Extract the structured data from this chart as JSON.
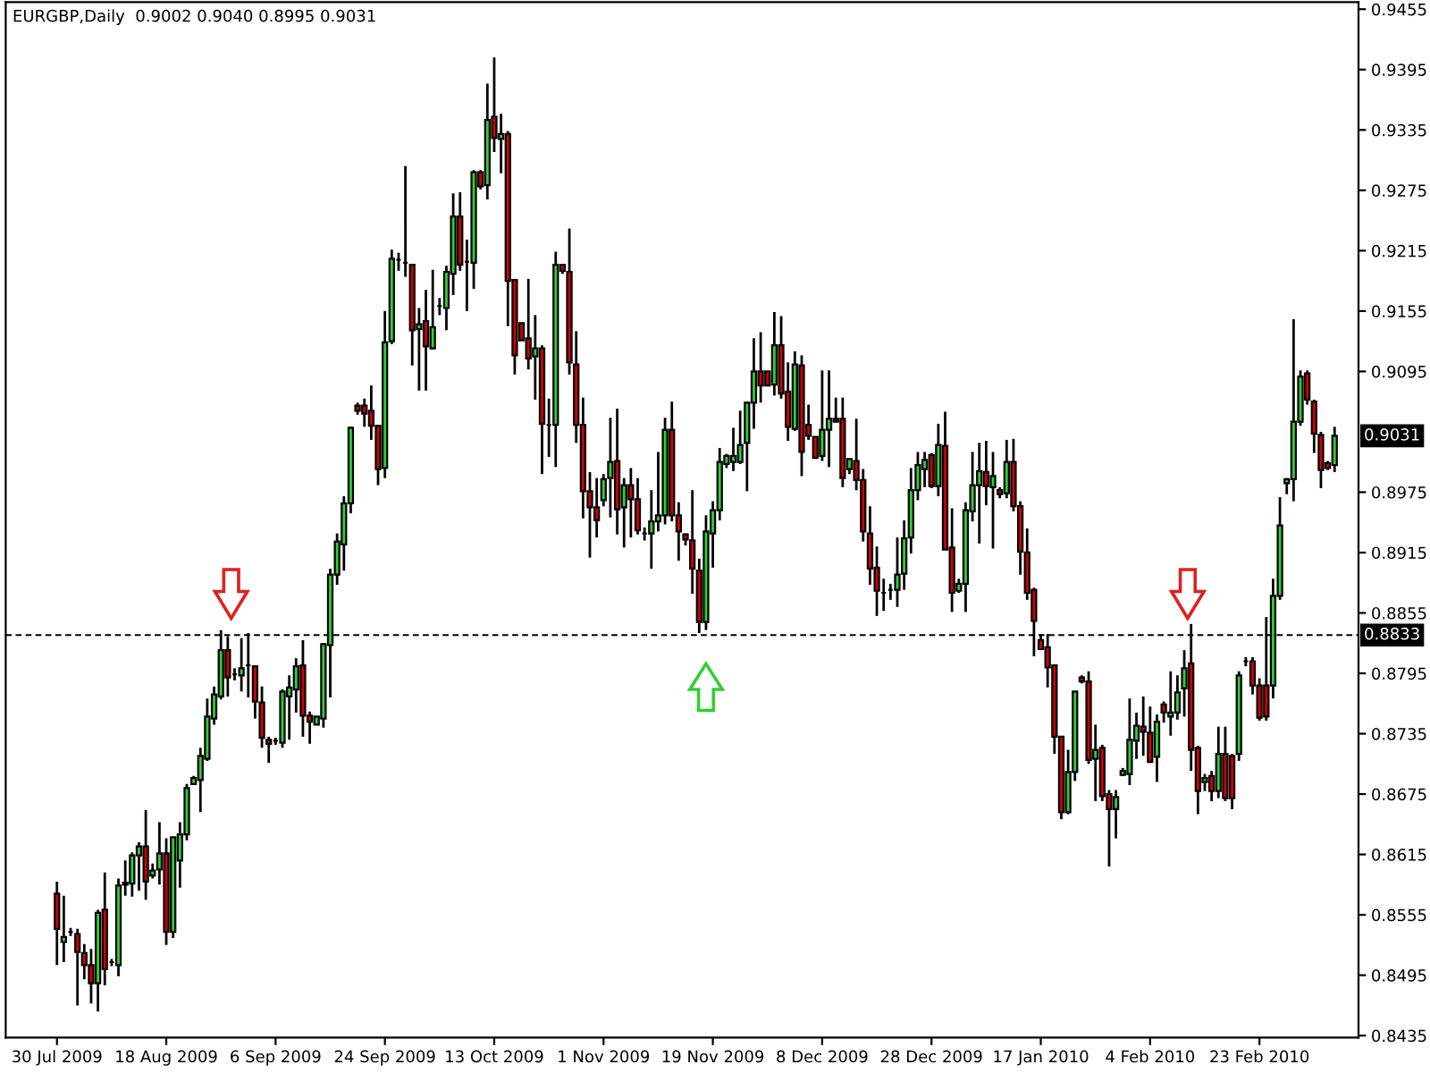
{
  "chart_data": {
    "type": "candlestick",
    "title": "EURGBP,Daily  0.9002 0.9040 0.8995 0.9031",
    "categories": [
      "30 Jul 2009",
      null,
      null,
      null,
      null,
      null,
      null,
      null,
      null,
      null,
      null,
      null,
      null,
      null,
      null,
      null,
      "18 Aug 2009",
      null,
      null,
      null,
      null,
      null,
      null,
      null,
      null,
      null,
      null,
      null,
      null,
      null,
      null,
      null,
      "6 Sep 2009",
      null,
      null,
      null,
      null,
      null,
      null,
      null,
      null,
      null,
      null,
      null,
      null,
      null,
      null,
      null,
      "24 Sep 2009",
      null,
      null,
      null,
      null,
      null,
      null,
      null,
      null,
      null,
      null,
      null,
      null,
      null,
      null,
      null,
      "13 Oct 2009",
      null,
      null,
      null,
      null,
      null,
      null,
      null,
      null,
      null,
      null,
      null,
      null,
      null,
      null,
      null,
      "1 Nov 2009",
      null,
      null,
      null,
      null,
      null,
      null,
      null,
      null,
      null,
      null,
      null,
      null,
      null,
      null,
      null,
      "19 Nov 2009",
      null,
      null,
      null,
      null,
      null,
      null,
      null,
      null,
      null,
      null,
      null,
      null,
      null,
      null,
      null,
      "8 Dec 2009",
      null,
      null,
      null,
      null,
      null,
      null,
      null,
      null,
      null,
      null,
      null,
      null,
      null,
      null,
      null,
      "28 Dec 2009",
      null,
      null,
      null,
      null,
      null,
      null,
      null,
      null,
      null,
      null,
      null,
      null,
      null,
      null,
      null,
      "17 Jan 2010",
      null,
      null,
      null,
      null,
      null,
      null,
      null,
      null,
      null,
      null,
      null,
      null,
      null,
      null,
      null,
      "4 Feb 2010",
      null,
      null,
      null,
      null,
      null,
      null,
      null,
      null,
      null,
      null,
      null,
      null,
      null,
      null,
      null,
      "23 Feb 2010",
      null,
      null,
      null,
      null,
      null,
      null,
      null,
      null,
      null,
      null,
      null
    ],
    "ohlc": [
      [
        0.8576,
        0.8588,
        0.8505,
        0.8541
      ],
      [
        0.8528,
        0.8574,
        0.8508,
        0.8533
      ],
      [
        0.8538,
        0.8542,
        0.8534,
        0.8538
      ],
      [
        0.8536,
        0.8541,
        0.8465,
        0.8518
      ],
      [
        0.8517,
        0.8526,
        0.8491,
        0.8505
      ],
      [
        0.8505,
        0.8521,
        0.8467,
        0.8487
      ],
      [
        0.8487,
        0.856,
        0.8459,
        0.8557
      ],
      [
        0.856,
        0.8597,
        0.8485,
        0.8501
      ],
      [
        0.8508,
        0.8511,
        0.8504,
        0.8508
      ],
      [
        0.8505,
        0.8591,
        0.8494,
        0.8584
      ],
      [
        0.8585,
        0.8609,
        0.8574,
        0.8587
      ],
      [
        0.8586,
        0.8617,
        0.8573,
        0.8614
      ],
      [
        0.8614,
        0.8627,
        0.8579,
        0.8623
      ],
      [
        0.8623,
        0.8659,
        0.857,
        0.8588
      ],
      [
        0.8594,
        0.8606,
        0.8591,
        0.8599
      ],
      [
        0.86,
        0.8647,
        0.8585,
        0.8616
      ],
      [
        0.8616,
        0.8631,
        0.8525,
        0.8538
      ],
      [
        0.8538,
        0.8632,
        0.8532,
        0.8632
      ],
      [
        0.8609,
        0.8647,
        0.8582,
        0.8635
      ],
      [
        0.8635,
        0.8685,
        0.8629,
        0.8681
      ],
      [
        0.8685,
        0.8693,
        0.8684,
        0.8691
      ],
      [
        0.8689,
        0.8721,
        0.8657,
        0.8713
      ],
      [
        0.871,
        0.877,
        0.8708,
        0.8752
      ],
      [
        0.875,
        0.8782,
        0.8744,
        0.8774
      ],
      [
        0.8772,
        0.8838,
        0.8769,
        0.8818
      ],
      [
        0.8818,
        0.8832,
        0.8772,
        0.8791
      ],
      [
        0.8794,
        0.88,
        0.8788,
        0.8794
      ],
      [
        0.8793,
        0.883,
        0.8777,
        0.88
      ],
      [
        0.8803,
        0.8835,
        0.8771,
        0.8803
      ],
      [
        0.8802,
        0.8803,
        0.875,
        0.8767
      ],
      [
        0.8766,
        0.8782,
        0.8721,
        0.8731
      ],
      [
        0.8729,
        0.8732,
        0.8706,
        0.8725
      ],
      [
        0.8728,
        0.8731,
        0.8724,
        0.8728
      ],
      [
        0.8726,
        0.8779,
        0.8721,
        0.8777
      ],
      [
        0.8772,
        0.8793,
        0.8729,
        0.8781
      ],
      [
        0.8779,
        0.881,
        0.8756,
        0.8802
      ],
      [
        0.8803,
        0.8828,
        0.8732,
        0.8753
      ],
      [
        0.8753,
        0.8757,
        0.8725,
        0.8747
      ],
      [
        0.8744,
        0.8752,
        0.8744,
        0.8752
      ],
      [
        0.875,
        0.8825,
        0.8741,
        0.8824
      ],
      [
        0.8823,
        0.8899,
        0.8771,
        0.8893
      ],
      [
        0.8893,
        0.8934,
        0.8883,
        0.8926
      ],
      [
        0.8923,
        0.8971,
        0.8897,
        0.8964
      ],
      [
        0.8964,
        0.904,
        0.8954,
        0.9039
      ],
      [
        0.9061,
        0.9064,
        0.9052,
        0.9056
      ],
      [
        0.9061,
        0.9068,
        0.904,
        0.9053
      ],
      [
        0.9056,
        0.9081,
        0.9027,
        0.9041
      ],
      [
        0.9041,
        0.9041,
        0.8982,
        0.8998
      ],
      [
        0.8999,
        0.9155,
        0.8989,
        0.9124
      ],
      [
        0.9125,
        0.9216,
        0.9122,
        0.9207
      ],
      [
        0.9206,
        0.9213,
        0.9195,
        0.9206
      ],
      [
        0.9203,
        0.9299,
        0.9189,
        0.9203
      ],
      [
        0.9201,
        0.9201,
        0.9101,
        0.9136
      ],
      [
        0.9137,
        0.9158,
        0.9076,
        0.9142
      ],
      [
        0.9145,
        0.9176,
        0.9076,
        0.912
      ],
      [
        0.9118,
        0.9196,
        0.9117,
        0.9139
      ],
      [
        0.916,
        0.9168,
        0.9151,
        0.916
      ],
      [
        0.9158,
        0.92,
        0.9136,
        0.9194
      ],
      [
        0.9192,
        0.9272,
        0.9171,
        0.9249
      ],
      [
        0.9249,
        0.9273,
        0.9195,
        0.9201
      ],
      [
        0.9204,
        0.9226,
        0.9155,
        0.9204
      ],
      [
        0.9203,
        0.9295,
        0.9177,
        0.9293
      ],
      [
        0.9293,
        0.9295,
        0.9276,
        0.9279
      ],
      [
        0.928,
        0.9381,
        0.9266,
        0.9345
      ],
      [
        0.9348,
        0.9407,
        0.9313,
        0.9327
      ],
      [
        0.9326,
        0.9351,
        0.9292,
        0.9331
      ],
      [
        0.9331,
        0.9334,
        0.914,
        0.9185
      ],
      [
        0.9186,
        0.9187,
        0.9092,
        0.9111
      ],
      [
        0.9143,
        0.9143,
        0.9126,
        0.9126
      ],
      [
        0.9128,
        0.9187,
        0.9097,
        0.9108
      ],
      [
        0.911,
        0.9151,
        0.9067,
        0.9118
      ],
      [
        0.9118,
        0.9121,
        0.8993,
        0.9043
      ],
      [
        0.9042,
        0.9068,
        0.901,
        0.9042
      ],
      [
        0.9042,
        0.9214,
        0.9,
        0.9201
      ],
      [
        0.9201,
        0.9201,
        0.9192,
        0.9195
      ],
      [
        0.9194,
        0.9237,
        0.9092,
        0.9104
      ],
      [
        0.9102,
        0.9135,
        0.9024,
        0.9042
      ],
      [
        0.9042,
        0.9069,
        0.8949,
        0.8976
      ],
      [
        0.8976,
        0.8995,
        0.891,
        0.896
      ],
      [
        0.896,
        0.8989,
        0.893,
        0.8947
      ],
      [
        0.8967,
        0.8993,
        0.8961,
        0.8988
      ],
      [
        0.8989,
        0.9049,
        0.895,
        0.9005
      ],
      [
        0.9006,
        0.9058,
        0.8933,
        0.8958
      ],
      [
        0.896,
        0.8989,
        0.892,
        0.8982
      ],
      [
        0.8982,
        0.8999,
        0.893,
        0.8968
      ],
      [
        0.8968,
        0.8989,
        0.8933,
        0.8937
      ],
      [
        0.8934,
        0.894,
        0.8927,
        0.8934
      ],
      [
        0.8934,
        0.8977,
        0.8899,
        0.8946
      ],
      [
        0.8946,
        0.9015,
        0.8936,
        0.8952
      ],
      [
        0.8952,
        0.9049,
        0.8943,
        0.9037
      ],
      [
        0.9037,
        0.9065,
        0.8946,
        0.8952
      ],
      [
        0.8952,
        0.8965,
        0.8907,
        0.8936
      ],
      [
        0.8933,
        0.8934,
        0.8922,
        0.8928
      ],
      [
        0.8927,
        0.8977,
        0.8874,
        0.8899
      ],
      [
        0.8897,
        0.8909,
        0.8835,
        0.8846
      ],
      [
        0.8846,
        0.8952,
        0.8838,
        0.8936
      ],
      [
        0.8934,
        0.8966,
        0.89,
        0.8957
      ],
      [
        0.8957,
        0.9019,
        0.8947,
        0.9005
      ],
      [
        0.9003,
        0.9013,
        0.8999,
        0.9011
      ],
      [
        0.9005,
        0.9039,
        0.8996,
        0.9011
      ],
      [
        0.9005,
        0.9056,
        0.9003,
        0.9022
      ],
      [
        0.9024,
        0.9065,
        0.8976,
        0.9064
      ],
      [
        0.9064,
        0.9128,
        0.9038,
        0.9095
      ],
      [
        0.9095,
        0.9134,
        0.9064,
        0.9081
      ],
      [
        0.9095,
        0.9095,
        0.9081,
        0.9081
      ],
      [
        0.9082,
        0.9154,
        0.9071,
        0.9121
      ],
      [
        0.9121,
        0.915,
        0.9068,
        0.9073
      ],
      [
        0.9075,
        0.9104,
        0.9026,
        0.904
      ],
      [
        0.9038,
        0.9115,
        0.9036,
        0.9102
      ],
      [
        0.9101,
        0.9111,
        0.8991,
        0.9015
      ],
      [
        0.9042,
        0.9062,
        0.9027,
        0.9031
      ],
      [
        0.903,
        0.903,
        0.9009,
        0.9009
      ],
      [
        0.9011,
        0.9096,
        0.9006,
        0.9037
      ],
      [
        0.9037,
        0.9096,
        0.9,
        0.9048
      ],
      [
        0.9048,
        0.9069,
        0.9045,
        0.9045
      ],
      [
        0.9048,
        0.9069,
        0.898,
        0.8989
      ],
      [
        0.8998,
        0.9008,
        0.8993,
        0.9008
      ],
      [
        0.9006,
        0.9048,
        0.8977,
        0.8987
      ],
      [
        0.8987,
        0.8998,
        0.8926,
        0.8936
      ],
      [
        0.8934,
        0.8961,
        0.8883,
        0.8899
      ],
      [
        0.89,
        0.8921,
        0.8852,
        0.8877
      ],
      [
        0.8875,
        0.8889,
        0.8857,
        0.8875
      ],
      [
        0.8878,
        0.8884,
        0.8868,
        0.8878
      ],
      [
        0.8878,
        0.893,
        0.8861,
        0.8893
      ],
      [
        0.8894,
        0.8947,
        0.8878,
        0.8929
      ],
      [
        0.893,
        0.8999,
        0.8914,
        0.8977
      ],
      [
        0.8977,
        0.9015,
        0.8967,
        0.9002
      ],
      [
        0.8998,
        0.9015,
        0.898,
        0.9007
      ],
      [
        0.9012,
        0.9014,
        0.8979,
        0.8981
      ],
      [
        0.8981,
        0.9043,
        0.8971,
        0.9022
      ],
      [
        0.9021,
        0.9055,
        0.8918,
        0.8918
      ],
      [
        0.892,
        0.8959,
        0.8856,
        0.8875
      ],
      [
        0.8877,
        0.8889,
        0.8875,
        0.8884
      ],
      [
        0.8884,
        0.8965,
        0.8856,
        0.8957
      ],
      [
        0.8956,
        0.9015,
        0.8946,
        0.8982
      ],
      [
        0.8982,
        0.9024,
        0.8924,
        0.8996
      ],
      [
        0.8995,
        0.9026,
        0.8962,
        0.8981
      ],
      [
        0.898,
        0.9015,
        0.8919,
        0.8991
      ],
      [
        0.8977,
        0.898,
        0.8969,
        0.8973
      ],
      [
        0.8974,
        0.9027,
        0.8969,
        0.9005
      ],
      [
        0.9005,
        0.9028,
        0.8956,
        0.8961
      ],
      [
        0.8961,
        0.8966,
        0.8893,
        0.8916
      ],
      [
        0.8915,
        0.8939,
        0.8868,
        0.8875
      ],
      [
        0.8878,
        0.888,
        0.8812,
        0.8847
      ],
      [
        0.8828,
        0.8834,
        0.8818,
        0.8819
      ],
      [
        0.8821,
        0.8834,
        0.8781,
        0.8801
      ],
      [
        0.8803,
        0.8803,
        0.8715,
        0.8732
      ],
      [
        0.8732,
        0.8732,
        0.865,
        0.8657
      ],
      [
        0.8657,
        0.8719,
        0.8655,
        0.8697
      ],
      [
        0.8697,
        0.8777,
        0.8688,
        0.8777
      ],
      [
        0.8791,
        0.8793,
        0.8785,
        0.8787
      ],
      [
        0.8787,
        0.8797,
        0.8705,
        0.8709
      ],
      [
        0.871,
        0.8744,
        0.8668,
        0.8719
      ],
      [
        0.8721,
        0.8724,
        0.8668,
        0.8673
      ],
      [
        0.8675,
        0.8679,
        0.8603,
        0.866
      ],
      [
        0.866,
        0.8679,
        0.8631,
        0.8672
      ],
      [
        0.8694,
        0.8701,
        0.8693,
        0.8698
      ],
      [
        0.8695,
        0.877,
        0.8684,
        0.8729
      ],
      [
        0.8728,
        0.8756,
        0.871,
        0.8743
      ],
      [
        0.8742,
        0.8772,
        0.8713,
        0.8737
      ],
      [
        0.8736,
        0.8762,
        0.8706,
        0.8707
      ],
      [
        0.8712,
        0.8754,
        0.8687,
        0.8747
      ],
      [
        0.8764,
        0.8767,
        0.8746,
        0.8756
      ],
      [
        0.8752,
        0.8797,
        0.8733,
        0.8756
      ],
      [
        0.8756,
        0.8793,
        0.8749,
        0.8776
      ],
      [
        0.878,
        0.8818,
        0.8752,
        0.88
      ],
      [
        0.8805,
        0.8844,
        0.8698,
        0.8719
      ],
      [
        0.8721,
        0.8723,
        0.8655,
        0.8678
      ],
      [
        0.8687,
        0.8695,
        0.8678,
        0.8691
      ],
      [
        0.8693,
        0.8698,
        0.8668,
        0.8678
      ],
      [
        0.8678,
        0.8742,
        0.8671,
        0.8715
      ],
      [
        0.8715,
        0.8742,
        0.8668,
        0.8671
      ],
      [
        0.8713,
        0.8715,
        0.866,
        0.8671
      ],
      [
        0.8715,
        0.8797,
        0.8708,
        0.8793
      ],
      [
        0.8807,
        0.8811,
        0.8802,
        0.8807
      ],
      [
        0.8807,
        0.8811,
        0.8774,
        0.8783
      ],
      [
        0.8783,
        0.879,
        0.8748,
        0.8751
      ],
      [
        0.8783,
        0.8851,
        0.8748,
        0.8752
      ],
      [
        0.8783,
        0.8889,
        0.877,
        0.8872
      ],
      [
        0.8872,
        0.897,
        0.8868,
        0.8942
      ],
      [
        0.8984,
        0.8989,
        0.8973,
        0.8988
      ],
      [
        0.8988,
        0.9147,
        0.8966,
        0.9045
      ],
      [
        0.9045,
        0.9096,
        0.9041,
        0.909
      ],
      [
        0.9093,
        0.9096,
        0.9062,
        0.9067
      ],
      [
        0.9065,
        0.9067,
        0.9014,
        0.9033
      ],
      [
        0.9032,
        0.9035,
        0.8979,
        0.8997
      ],
      [
        0.9004,
        0.9006,
        0.8997,
        0.8999
      ],
      [
        0.9002,
        0.904,
        0.8995,
        0.9031
      ]
    ],
    "colors": [
      "#d00000",
      "#32cd32",
      "#000000",
      "#d00000",
      "#d00000",
      "#d00000",
      "#32cd32",
      "#d00000",
      "#000000",
      "#32cd32",
      "#32cd32",
      "#32cd32",
      "#32cd32",
      "#d00000",
      "#32cd32",
      "#32cd32",
      "#d00000",
      "#32cd32",
      "#32cd32",
      "#32cd32",
      "#32cd32",
      "#32cd32",
      "#32cd32",
      "#32cd32",
      "#32cd32",
      "#d00000",
      "#000000",
      "#32cd32",
      "#000000",
      "#d00000",
      "#d00000",
      "#d00000",
      "#000000",
      "#32cd32",
      "#32cd32",
      "#32cd32",
      "#d00000",
      "#d00000",
      "#32cd32",
      "#32cd32",
      "#32cd32",
      "#32cd32",
      "#32cd32",
      "#32cd32",
      "#d00000",
      "#d00000",
      "#d00000",
      "#d00000",
      "#32cd32",
      "#32cd32",
      "#000000",
      "#000000",
      "#d00000",
      "#32cd32",
      "#d00000",
      "#32cd32",
      "#000000",
      "#32cd32",
      "#32cd32",
      "#d00000",
      "#000000",
      "#32cd32",
      "#d00000",
      "#32cd32",
      "#d00000",
      "#32cd32",
      "#d00000",
      "#d00000",
      "#d00000",
      "#d00000",
      "#32cd32",
      "#d00000",
      "#000000",
      "#32cd32",
      "#d00000",
      "#d00000",
      "#d00000",
      "#d00000",
      "#d00000",
      "#d00000",
      "#32cd32",
      "#32cd32",
      "#d00000",
      "#32cd32",
      "#d00000",
      "#d00000",
      "#000000",
      "#32cd32",
      "#32cd32",
      "#32cd32",
      "#d00000",
      "#d00000",
      "#d00000",
      "#d00000",
      "#d00000",
      "#32cd32",
      "#32cd32",
      "#32cd32",
      "#32cd32",
      "#32cd32",
      "#32cd32",
      "#32cd32",
      "#32cd32",
      "#d00000",
      "#d00000",
      "#32cd32",
      "#d00000",
      "#d00000",
      "#32cd32",
      "#d00000",
      "#d00000",
      "#d00000",
      "#32cd32",
      "#32cd32",
      "#d00000",
      "#d00000",
      "#32cd32",
      "#d00000",
      "#d00000",
      "#d00000",
      "#d00000",
      "#000000",
      "#000000",
      "#32cd32",
      "#32cd32",
      "#32cd32",
      "#32cd32",
      "#32cd32",
      "#d00000",
      "#32cd32",
      "#d00000",
      "#d00000",
      "#32cd32",
      "#32cd32",
      "#32cd32",
      "#32cd32",
      "#d00000",
      "#32cd32",
      "#d00000",
      "#32cd32",
      "#d00000",
      "#d00000",
      "#d00000",
      "#d00000",
      "#d00000",
      "#d00000",
      "#d00000",
      "#d00000",
      "#32cd32",
      "#32cd32",
      "#d00000",
      "#d00000",
      "#32cd32",
      "#d00000",
      "#d00000",
      "#32cd32",
      "#32cd32",
      "#32cd32",
      "#32cd32",
      "#d00000",
      "#d00000",
      "#32cd32",
      "#d00000",
      "#32cd32",
      "#32cd32",
      "#32cd32",
      "#d00000",
      "#d00000",
      "#32cd32",
      "#d00000",
      "#32cd32",
      "#d00000",
      "#d00000",
      "#32cd32",
      "#000000",
      "#d00000",
      "#d00000",
      "#d00000",
      "#32cd32",
      "#32cd32",
      "#32cd32",
      "#32cd32",
      "#32cd32",
      "#d00000",
      "#d00000",
      "#d00000",
      "#d00000",
      "#32cd32"
    ],
    "ylim": [
      0.8433,
      0.9462
    ],
    "yticks": [
      0.8435,
      0.8495,
      0.8555,
      0.8615,
      0.8675,
      0.8735,
      0.8795,
      0.8855,
      0.8915,
      0.8975,
      0.9095,
      0.9155,
      0.9215,
      0.9275,
      0.9335,
      0.9395,
      0.9455
    ],
    "ref_lines": [
      {
        "axis": "y",
        "value": 0.8833,
        "label": "0.8833",
        "color": "#000000",
        "line_style": "dashed"
      }
    ],
    "annotations": [
      "0.9031"
    ]
  }
}
